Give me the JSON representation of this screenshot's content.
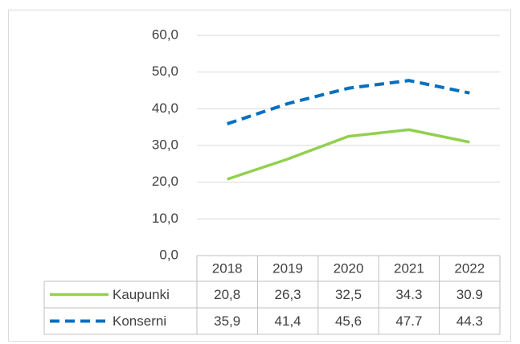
{
  "chart_data": {
    "type": "line",
    "categories": [
      "2018",
      "2019",
      "2020",
      "2021",
      "2022"
    ],
    "series": [
      {
        "name": "Kaupunki",
        "color": "#92d050",
        "dash": false,
        "values": [
          20.8,
          26.3,
          32.5,
          34.3,
          30.9
        ],
        "value_labels": [
          "20,8",
          "26,3",
          "32,5",
          "34.3",
          "30.9"
        ]
      },
      {
        "name": "Konserni",
        "color": "#0070c0",
        "dash": true,
        "values": [
          35.9,
          41.4,
          45.6,
          47.7,
          44.3
        ],
        "value_labels": [
          "35,9",
          "41,4",
          "45,6",
          "47.7",
          "44.3"
        ]
      }
    ],
    "ylim": [
      0,
      60
    ],
    "yticks": [
      {
        "value": 0,
        "label": "0,0"
      },
      {
        "value": 10,
        "label": "10,0"
      },
      {
        "value": 20,
        "label": "20,0"
      },
      {
        "value": 30,
        "label": "30,0"
      },
      {
        "value": 40,
        "label": "40,0"
      },
      {
        "value": 50,
        "label": "50,0"
      },
      {
        "value": 60,
        "label": "60,0"
      }
    ],
    "grid": true,
    "data_table": true
  }
}
